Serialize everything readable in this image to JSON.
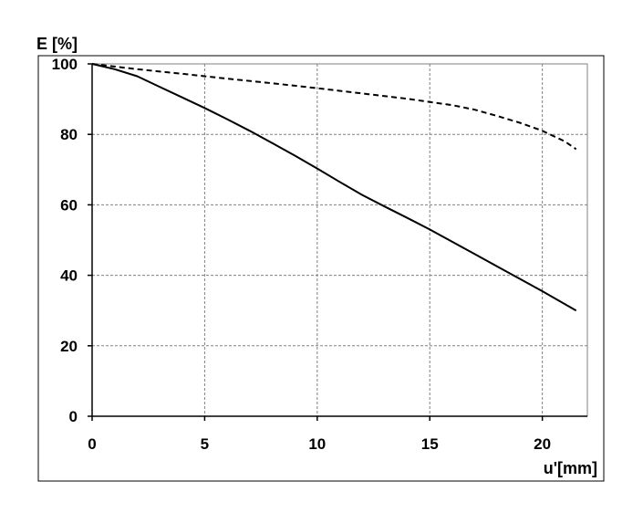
{
  "chart_data": {
    "type": "line",
    "title": "",
    "xlabel": "u'[mm]",
    "ylabel": "E [%]",
    "xlim": [
      0,
      22
    ],
    "ylim": [
      0,
      100
    ],
    "xticks": [
      0,
      5,
      10,
      15,
      20
    ],
    "yticks": [
      0,
      20,
      40,
      60,
      80,
      100
    ],
    "grid": true,
    "legend": "none",
    "series": [
      {
        "style": "solid",
        "color": "#000000",
        "points": [
          [
            0,
            100
          ],
          [
            1,
            98.5
          ],
          [
            2,
            96.5
          ],
          [
            3,
            93.5
          ],
          [
            4,
            90.5
          ],
          [
            5,
            87.5
          ],
          [
            6,
            84.3
          ],
          [
            7,
            81
          ],
          [
            8,
            77.5
          ],
          [
            9,
            74
          ],
          [
            10,
            70.3
          ],
          [
            11,
            66.5
          ],
          [
            12,
            62.8
          ],
          [
            13,
            59.5
          ],
          [
            14,
            56.3
          ],
          [
            15,
            53
          ],
          [
            16,
            49.5
          ],
          [
            17,
            46
          ],
          [
            18,
            42.5
          ],
          [
            19,
            39
          ],
          [
            20,
            35.5
          ],
          [
            21.5,
            30
          ]
        ]
      },
      {
        "style": "dashed",
        "color": "#000000",
        "points": [
          [
            0,
            100
          ],
          [
            2,
            98.5
          ],
          [
            4,
            97.2
          ],
          [
            6,
            95.8
          ],
          [
            8,
            94.5
          ],
          [
            10,
            93.1
          ],
          [
            12,
            91.6
          ],
          [
            14,
            90.1
          ],
          [
            16,
            88.3
          ],
          [
            17,
            87
          ],
          [
            18,
            85.2
          ],
          [
            19,
            83.3
          ],
          [
            20,
            81
          ],
          [
            21,
            78
          ],
          [
            21.5,
            75.8
          ]
        ]
      }
    ]
  }
}
